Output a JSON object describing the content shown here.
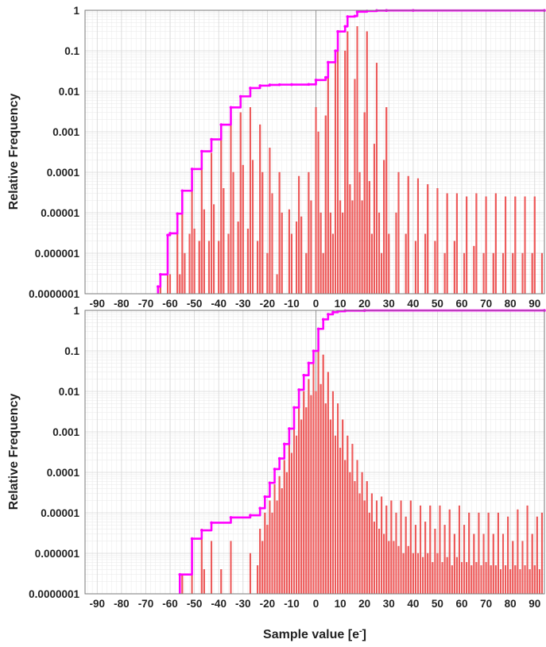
{
  "chart_data": [
    {
      "type": "bar",
      "log_y": true,
      "ylabel": "Relative Frequency",
      "xlabel": "Sample value [e",
      "xlabel_sup": "-",
      "xlabel_suffix": "]",
      "xlim": [
        -95,
        94
      ],
      "ylim": [
        1e-07,
        1
      ],
      "x_ticks": [
        -90,
        -80,
        -70,
        -60,
        -50,
        -40,
        -30,
        -20,
        -10,
        0,
        10,
        20,
        30,
        40,
        50,
        60,
        70,
        80,
        90
      ],
      "y_ticks": [
        "1",
        "0.1",
        "0.01",
        "0.001",
        "0.0001",
        "0.00001",
        "0.000001",
        "0.0000001"
      ],
      "grid": true,
      "bar_color": "#f25a5a",
      "cdf_color": "#ff00ff",
      "bars": [
        {
          "x": -64,
          "y": 1.5e-07
        },
        {
          "x": -61,
          "y": 2.5e-06
        },
        {
          "x": -60,
          "y": 3e-07
        },
        {
          "x": -57,
          "y": 6e-06
        },
        {
          "x": -56,
          "y": 3e-07
        },
        {
          "x": -55,
          "y": 3e-05
        },
        {
          "x": -54,
          "y": 1e-06
        },
        {
          "x": -52,
          "y": 3e-06
        },
        {
          "x": -51,
          "y": 8e-05
        },
        {
          "x": -50,
          "y": 4e-06
        },
        {
          "x": -48,
          "y": 2e-06
        },
        {
          "x": -47,
          "y": 0.0002
        },
        {
          "x": -46,
          "y": 1.2e-05
        },
        {
          "x": -44,
          "y": 2e-06
        },
        {
          "x": -43,
          "y": 0.0003
        },
        {
          "x": -42,
          "y": 1.6e-05
        },
        {
          "x": -40,
          "y": 2e-06
        },
        {
          "x": -39,
          "y": 0.0008
        },
        {
          "x": -38,
          "y": 4e-05
        },
        {
          "x": -36,
          "y": 3e-06
        },
        {
          "x": -35,
          "y": 0.0025
        },
        {
          "x": -34,
          "y": 0.0001
        },
        {
          "x": -32,
          "y": 6e-06
        },
        {
          "x": -31,
          "y": 0.003
        },
        {
          "x": -30,
          "y": 0.00015
        },
        {
          "x": -28,
          "y": 4e-06
        },
        {
          "x": -27,
          "y": 0.004
        },
        {
          "x": -26,
          "y": 0.0002
        },
        {
          "x": -24,
          "y": 2e-06
        },
        {
          "x": -23,
          "y": 0.0015
        },
        {
          "x": -22,
          "y": 0.0001
        },
        {
          "x": -20,
          "y": 1e-06
        },
        {
          "x": -19,
          "y": 0.0004
        },
        {
          "x": -18,
          "y": 3e-05
        },
        {
          "x": -16,
          "y": 3e-07
        },
        {
          "x": -15,
          "y": 0.0001
        },
        {
          "x": -14,
          "y": 1e-05
        },
        {
          "x": -11,
          "y": 1.2e-05
        },
        {
          "x": -10,
          "y": 3e-06
        },
        {
          "x": -8,
          "y": 6e-06
        },
        {
          "x": -7,
          "y": 8e-05
        },
        {
          "x": -6,
          "y": 8e-06
        },
        {
          "x": -4,
          "y": 1e-06
        },
        {
          "x": -3,
          "y": 0.0001
        },
        {
          "x": -2,
          "y": 2e-05
        },
        {
          "x": 0,
          "y": 0.004
        },
        {
          "x": 1,
          "y": 0.001
        },
        {
          "x": 2,
          "y": 1e-05
        },
        {
          "x": 3,
          "y": 1e-06
        },
        {
          "x": 4,
          "y": 0.0025
        },
        {
          "x": 5,
          "y": 0.03
        },
        {
          "x": 6,
          "y": 1e-05
        },
        {
          "x": 7,
          "y": 3e-06
        },
        {
          "x": 8,
          "y": 0.05
        },
        {
          "x": 9,
          "y": 0.2
        },
        {
          "x": 10,
          "y": 2e-05
        },
        {
          "x": 11,
          "y": 1e-05
        },
        {
          "x": 12,
          "y": 0.1
        },
        {
          "x": 13,
          "y": 0.3
        },
        {
          "x": 14,
          "y": 5e-05
        },
        {
          "x": 15,
          "y": 2e-05
        },
        {
          "x": 16,
          "y": 0.02
        },
        {
          "x": 17,
          "y": 0.4
        },
        {
          "x": 18,
          "y": 0.0001
        },
        {
          "x": 19,
          "y": 2e-05
        },
        {
          "x": 20,
          "y": 0.003
        },
        {
          "x": 21,
          "y": 0.3
        },
        {
          "x": 22,
          "y": 6e-05
        },
        {
          "x": 23,
          "y": 3e-06
        },
        {
          "x": 24,
          "y": 0.0005
        },
        {
          "x": 25,
          "y": 0.05
        },
        {
          "x": 26,
          "y": 1e-05
        },
        {
          "x": 27,
          "y": 1e-06
        },
        {
          "x": 28,
          "y": 0.0002
        },
        {
          "x": 29,
          "y": 0.004
        },
        {
          "x": 30,
          "y": 3e-06
        },
        {
          "x": 33,
          "y": 1e-05
        },
        {
          "x": 34,
          "y": 0.0001
        },
        {
          "x": 37,
          "y": 3e-06
        },
        {
          "x": 38,
          "y": 8e-05
        },
        {
          "x": 41,
          "y": 2e-06
        },
        {
          "x": 42,
          "y": 7e-05
        },
        {
          "x": 45,
          "y": 3e-06
        },
        {
          "x": 46,
          "y": 5e-05
        },
        {
          "x": 49,
          "y": 2e-06
        },
        {
          "x": 50,
          "y": 4e-05
        },
        {
          "x": 53,
          "y": 1e-06
        },
        {
          "x": 54,
          "y": 3e-05
        },
        {
          "x": 57,
          "y": 2e-06
        },
        {
          "x": 58,
          "y": 3e-05
        },
        {
          "x": 61,
          "y": 1e-06
        },
        {
          "x": 62,
          "y": 2.5e-05
        },
        {
          "x": 65,
          "y": 1.5e-06
        },
        {
          "x": 66,
          "y": 3e-05
        },
        {
          "x": 69,
          "y": 1e-06
        },
        {
          "x": 70,
          "y": 2.5e-05
        },
        {
          "x": 73,
          "y": 1e-06
        },
        {
          "x": 74,
          "y": 3e-05
        },
        {
          "x": 77,
          "y": 1e-06
        },
        {
          "x": 78,
          "y": 2.5e-05
        },
        {
          "x": 81,
          "y": 1e-06
        },
        {
          "x": 82,
          "y": 2.5e-05
        },
        {
          "x": 85,
          "y": 1e-06
        },
        {
          "x": 86,
          "y": 2.5e-05
        },
        {
          "x": 89,
          "y": 1e-06
        },
        {
          "x": 90,
          "y": 2.5e-05
        },
        {
          "x": 93,
          "y": 1e-06
        }
      ],
      "cdf": [
        {
          "x": -65,
          "y": 1.5e-07
        },
        {
          "x": -64,
          "y": 3e-07
        },
        {
          "x": -61,
          "y": 2.8e-06
        },
        {
          "x": -60,
          "y": 3.1e-06
        },
        {
          "x": -57,
          "y": 9.5e-06
        },
        {
          "x": -55,
          "y": 3.5e-05
        },
        {
          "x": -51,
          "y": 0.00012
        },
        {
          "x": -47,
          "y": 0.00033
        },
        {
          "x": -43,
          "y": 0.00065
        },
        {
          "x": -39,
          "y": 0.0015
        },
        {
          "x": -35,
          "y": 0.004
        },
        {
          "x": -31,
          "y": 0.0075
        },
        {
          "x": -27,
          "y": 0.012
        },
        {
          "x": -23,
          "y": 0.0138
        },
        {
          "x": -19,
          "y": 0.0144
        },
        {
          "x": -15,
          "y": 0.0146
        },
        {
          "x": -10,
          "y": 0.01465
        },
        {
          "x": -3,
          "y": 0.0148
        },
        {
          "x": 0,
          "y": 0.019
        },
        {
          "x": 4,
          "y": 0.022
        },
        {
          "x": 5,
          "y": 0.052
        },
        {
          "x": 8,
          "y": 0.1
        },
        {
          "x": 9,
          "y": 0.3
        },
        {
          "x": 12,
          "y": 0.4
        },
        {
          "x": 13,
          "y": 0.7
        },
        {
          "x": 16,
          "y": 0.72
        },
        {
          "x": 17,
          "y": 0.92
        },
        {
          "x": 21,
          "y": 0.96
        },
        {
          "x": 25,
          "y": 0.985
        },
        {
          "x": 29,
          "y": 0.99
        },
        {
          "x": 40,
          "y": 0.992
        },
        {
          "x": 94,
          "y": 0.993
        }
      ]
    },
    {
      "type": "bar",
      "log_y": true,
      "ylabel": "Relative Frequency",
      "xlabel": "Sample value [e",
      "xlabel_sup": "-",
      "xlabel_suffix": "]",
      "xlim": [
        -95,
        94
      ],
      "ylim": [
        1e-07,
        1
      ],
      "x_ticks": [
        -90,
        -80,
        -70,
        -60,
        -50,
        -40,
        -30,
        -20,
        -10,
        0,
        10,
        20,
        30,
        40,
        50,
        60,
        70,
        80,
        90
      ],
      "y_ticks": [
        "1",
        "0.1",
        "0.01",
        "0.001",
        "0.0001",
        "0.00001",
        "0.000001",
        "0.0000001"
      ],
      "grid": true,
      "bar_color": "#f25a5a",
      "cdf_color": "#ff00ff",
      "bars": [
        {
          "x": -55,
          "y": 3e-07
        },
        {
          "x": -51,
          "y": 2e-06
        },
        {
          "x": -47,
          "y": 4e-06
        },
        {
          "x": -46,
          "y": 4e-07
        },
        {
          "x": -43,
          "y": 2e-06
        },
        {
          "x": -39,
          "y": 4e-07
        },
        {
          "x": -35,
          "y": 2e-06
        },
        {
          "x": -27,
          "y": 1e-06
        },
        {
          "x": -24,
          "y": 5e-07
        },
        {
          "x": -23,
          "y": 4e-06
        },
        {
          "x": -22,
          "y": 2e-06
        },
        {
          "x": -21,
          "y": 1e-05
        },
        {
          "x": -20,
          "y": 5e-06
        },
        {
          "x": -19,
          "y": 2e-05
        },
        {
          "x": -18,
          "y": 1e-05
        },
        {
          "x": -17,
          "y": 5e-05
        },
        {
          "x": -16,
          "y": 2e-05
        },
        {
          "x": -15,
          "y": 8e-05
        },
        {
          "x": -14,
          "y": 4e-05
        },
        {
          "x": -13,
          "y": 0.0002
        },
        {
          "x": -12,
          "y": 0.0001
        },
        {
          "x": -11,
          "y": 0.0005
        },
        {
          "x": -10,
          "y": 0.0003
        },
        {
          "x": -9,
          "y": 0.002
        },
        {
          "x": -8,
          "y": 0.0008
        },
        {
          "x": -7,
          "y": 0.005
        },
        {
          "x": -6,
          "y": 0.002
        },
        {
          "x": -5,
          "y": 0.01
        },
        {
          "x": -4,
          "y": 0.004
        },
        {
          "x": -3,
          "y": 0.02
        },
        {
          "x": -2,
          "y": 0.008
        },
        {
          "x": -1,
          "y": 0.05
        },
        {
          "x": 0,
          "y": 0.01
        },
        {
          "x": 1,
          "y": 0.2
        },
        {
          "x": 2,
          "y": 0.015
        },
        {
          "x": 3,
          "y": 0.08
        },
        {
          "x": 4,
          "y": 0.005
        },
        {
          "x": 5,
          "y": 0.03
        },
        {
          "x": 6,
          "y": 0.002
        },
        {
          "x": 7,
          "y": 0.01
        },
        {
          "x": 8,
          "y": 0.0008
        },
        {
          "x": 9,
          "y": 0.005
        },
        {
          "x": 10,
          "y": 0.0004
        },
        {
          "x": 11,
          "y": 0.002
        },
        {
          "x": 12,
          "y": 0.0002
        },
        {
          "x": 13,
          "y": 0.0008
        },
        {
          "x": 14,
          "y": 0.0001
        },
        {
          "x": 15,
          "y": 0.0005
        },
        {
          "x": 16,
          "y": 6e-05
        },
        {
          "x": 17,
          "y": 0.0002
        },
        {
          "x": 18,
          "y": 3e-05
        },
        {
          "x": 19,
          "y": 0.0001
        },
        {
          "x": 20,
          "y": 2e-05
        },
        {
          "x": 21,
          "y": 6e-05
        },
        {
          "x": 22,
          "y": 1e-05
        },
        {
          "x": 23,
          "y": 3e-05
        },
        {
          "x": 24,
          "y": 6e-06
        },
        {
          "x": 25,
          "y": 2e-05
        },
        {
          "x": 26,
          "y": 4e-06
        },
        {
          "x": 27,
          "y": 2.5e-05
        },
        {
          "x": 28,
          "y": 3e-06
        },
        {
          "x": 29,
          "y": 1.5e-05
        },
        {
          "x": 30,
          "y": 2e-06
        },
        {
          "x": 31,
          "y": 2e-05
        },
        {
          "x": 32,
          "y": 2e-06
        },
        {
          "x": 33,
          "y": 1e-05
        },
        {
          "x": 34,
          "y": 1.5e-06
        },
        {
          "x": 35,
          "y": 2e-05
        },
        {
          "x": 36,
          "y": 1e-06
        },
        {
          "x": 37,
          "y": 8e-06
        },
        {
          "x": 38,
          "y": 1.5e-06
        },
        {
          "x": 39,
          "y": 2e-05
        },
        {
          "x": 40,
          "y": 1e-06
        },
        {
          "x": 41,
          "y": 5e-06
        },
        {
          "x": 42,
          "y": 1e-06
        },
        {
          "x": 43,
          "y": 1.5e-05
        },
        {
          "x": 44,
          "y": 8e-07
        },
        {
          "x": 45,
          "y": 6e-06
        },
        {
          "x": 46,
          "y": 1e-06
        },
        {
          "x": 47,
          "y": 1.5e-05
        },
        {
          "x": 48,
          "y": 6e-07
        },
        {
          "x": 49,
          "y": 4e-06
        },
        {
          "x": 50,
          "y": 1e-06
        },
        {
          "x": 51,
          "y": 1.5e-05
        },
        {
          "x": 52,
          "y": 6e-07
        },
        {
          "x": 53,
          "y": 5e-06
        },
        {
          "x": 54,
          "y": 8e-07
        },
        {
          "x": 55,
          "y": 1.2e-05
        },
        {
          "x": 56,
          "y": 5e-07
        },
        {
          "x": 57,
          "y": 3e-06
        },
        {
          "x": 58,
          "y": 8e-07
        },
        {
          "x": 59,
          "y": 1.5e-05
        },
        {
          "x": 60,
          "y": 6e-07
        },
        {
          "x": 61,
          "y": 5e-06
        },
        {
          "x": 62,
          "y": 6e-07
        },
        {
          "x": 63,
          "y": 1e-05
        },
        {
          "x": 64,
          "y": 5e-07
        },
        {
          "x": 65,
          "y": 3e-06
        },
        {
          "x": 66,
          "y": 6e-07
        },
        {
          "x": 67,
          "y": 1e-05
        },
        {
          "x": 68,
          "y": 5e-07
        },
        {
          "x": 69,
          "y": 3e-06
        },
        {
          "x": 70,
          "y": 6e-07
        },
        {
          "x": 71,
          "y": 1e-05
        },
        {
          "x": 72,
          "y": 5e-07
        },
        {
          "x": 73,
          "y": 3e-06
        },
        {
          "x": 74,
          "y": 5e-07
        },
        {
          "x": 75,
          "y": 1e-05
        },
        {
          "x": 76,
          "y": 4e-07
        },
        {
          "x": 77,
          "y": 3e-06
        },
        {
          "x": 78,
          "y": 5e-07
        },
        {
          "x": 79,
          "y": 8e-06
        },
        {
          "x": 80,
          "y": 4e-07
        },
        {
          "x": 81,
          "y": 2e-06
        },
        {
          "x": 82,
          "y": 5e-07
        },
        {
          "x": 83,
          "y": 1.2e-05
        },
        {
          "x": 84,
          "y": 4e-07
        },
        {
          "x": 85,
          "y": 2e-06
        },
        {
          "x": 86,
          "y": 5e-07
        },
        {
          "x": 87,
          "y": 1.5e-05
        },
        {
          "x": 88,
          "y": 4e-07
        },
        {
          "x": 89,
          "y": 3e-06
        },
        {
          "x": 90,
          "y": 5e-07
        },
        {
          "x": 91,
          "y": 8e-06
        },
        {
          "x": 92,
          "y": 4e-07
        },
        {
          "x": 93,
          "y": 1e-05
        }
      ],
      "cdf": [
        {
          "x": -56,
          "y": 3e-07
        },
        {
          "x": -51,
          "y": 2.3e-06
        },
        {
          "x": -47,
          "y": 3.7e-06
        },
        {
          "x": -43,
          "y": 5.7e-06
        },
        {
          "x": -35,
          "y": 7.7e-06
        },
        {
          "x": -27,
          "y": 8.7e-06
        },
        {
          "x": -23,
          "y": 1.3e-05
        },
        {
          "x": -21,
          "y": 2.5e-05
        },
        {
          "x": -19,
          "y": 5.5e-05
        },
        {
          "x": -17,
          "y": 0.00012
        },
        {
          "x": -15,
          "y": 0.00022
        },
        {
          "x": -13,
          "y": 0.0005
        },
        {
          "x": -11,
          "y": 0.0012
        },
        {
          "x": -9,
          "y": 0.004
        },
        {
          "x": -7,
          "y": 0.011
        },
        {
          "x": -5,
          "y": 0.025
        },
        {
          "x": -3,
          "y": 0.05
        },
        {
          "x": -1,
          "y": 0.1
        },
        {
          "x": 1,
          "y": 0.35
        },
        {
          "x": 3,
          "y": 0.6
        },
        {
          "x": 5,
          "y": 0.8
        },
        {
          "x": 7,
          "y": 0.9
        },
        {
          "x": 9,
          "y": 0.95
        },
        {
          "x": 12,
          "y": 0.985
        },
        {
          "x": 20,
          "y": 0.995
        },
        {
          "x": 94,
          "y": 0.998
        }
      ]
    }
  ]
}
